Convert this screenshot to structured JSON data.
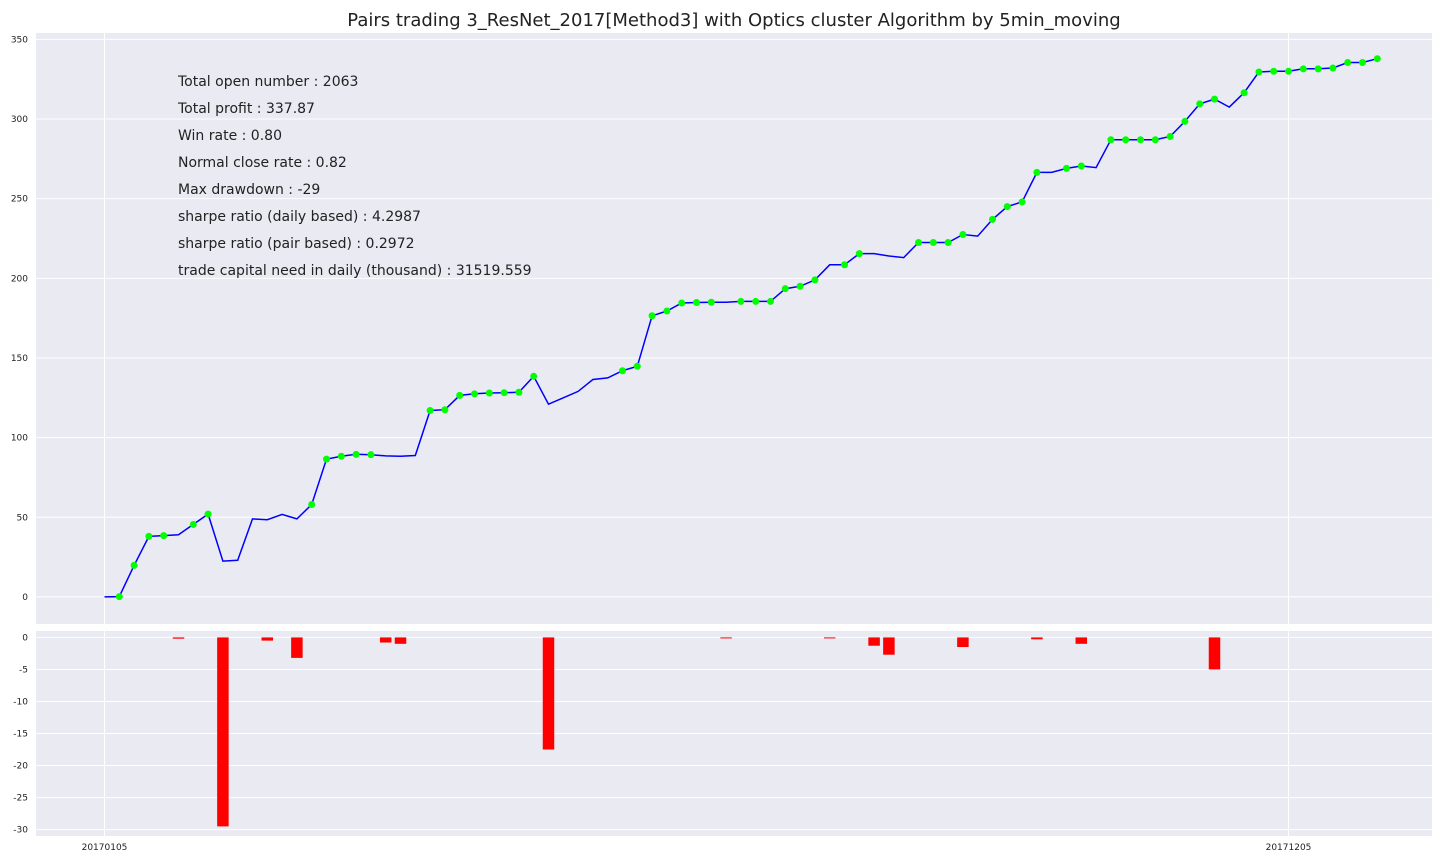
{
  "chart_data": [
    {
      "type": "line",
      "title": "Pairs trading 3_ResNet_2017[Method3] with Optics cluster Algorithm by 5min_moving",
      "xlabel": "",
      "ylabel": "",
      "ylim": [
        -17,
        354
      ],
      "yticks": [
        0,
        50,
        100,
        150,
        200,
        250,
        300,
        350
      ],
      "xticks": [
        {
          "label": "20170105",
          "index": 0
        },
        {
          "label": "20171205",
          "index": 80
        }
      ],
      "grid": true,
      "line_color": "#0000ff",
      "marker_color": "#00ff00",
      "series": [
        {
          "values": [
            0,
            0.2,
            19.8,
            38,
            38.5,
            39,
            45.5,
            52,
            22.5,
            23,
            49,
            48.5,
            51.8,
            49,
            58,
            86.5,
            88.3,
            89.5,
            89.3,
            88.5,
            88.3,
            88.8,
            117,
            117.5,
            126.5,
            127.5,
            128,
            128.2,
            128.5,
            138.5,
            121,
            125,
            129,
            136.5,
            137.5,
            142,
            144.8,
            176.5,
            179.5,
            184.5,
            184.8,
            185,
            185,
            185.5,
            185.5,
            185.5,
            193.5,
            195,
            199,
            208.5,
            208.5,
            215.5,
            215.5,
            214,
            213,
            222.5,
            222.5,
            222.5,
            227.5,
            226.5,
            237,
            245,
            248,
            266.5,
            266.5,
            269,
            270.5,
            269.5,
            287,
            287,
            287,
            287,
            289,
            298.5,
            309.5,
            312.5,
            307.5,
            316.5,
            329.5,
            330,
            330,
            331.5,
            331.5,
            332,
            335.5,
            335.5,
            337.87
          ],
          "markers": [
            1,
            2,
            3,
            4,
            6,
            7,
            14,
            15,
            16,
            17,
            18,
            22,
            23,
            24,
            25,
            26,
            27,
            28,
            29,
            35,
            36,
            37,
            38,
            39,
            40,
            41,
            43,
            44,
            45,
            46,
            47,
            48,
            50,
            51,
            55,
            56,
            57,
            58,
            60,
            61,
            62,
            63,
            65,
            66,
            68,
            69,
            70,
            71,
            72,
            73,
            74,
            75,
            77,
            78,
            79,
            80,
            81,
            82,
            83,
            84,
            85,
            86
          ]
        }
      ],
      "stats": [
        "Total open number : 2063",
        "Total profit : 337.87",
        "Win rate : 0.80",
        "Normal close rate : 0.82",
        "Max drawdown : -29",
        "sharpe ratio (daily based) : 4.2987",
        "sharpe ratio (pair based) : 0.2972",
        "trade capital need in daily (thousand) : 31519.559"
      ]
    },
    {
      "type": "bar",
      "title": "",
      "ylim": [
        -31,
        0
      ],
      "yticks": [
        0,
        -5,
        -10,
        -15,
        -20,
        -25,
        -30
      ],
      "bar_color": "#ff0000",
      "grid": true,
      "drawdowns": [
        {
          "index": 5,
          "value": -0.2
        },
        {
          "index": 8,
          "value": -29.5
        },
        {
          "index": 11,
          "value": -0.5
        },
        {
          "index": 13,
          "value": -3.2
        },
        {
          "index": 19,
          "value": -0.8
        },
        {
          "index": 20,
          "value": -1
        },
        {
          "index": 30,
          "value": -17.5
        },
        {
          "index": 42,
          "value": -0.1
        },
        {
          "index": 49,
          "value": -0.1
        },
        {
          "index": 52,
          "value": -1.3
        },
        {
          "index": 53,
          "value": -2.7
        },
        {
          "index": 58,
          "value": -1.5
        },
        {
          "index": 63,
          "value": -0.3
        },
        {
          "index": 66,
          "value": -1
        },
        {
          "index": 75,
          "value": -5
        }
      ]
    }
  ]
}
